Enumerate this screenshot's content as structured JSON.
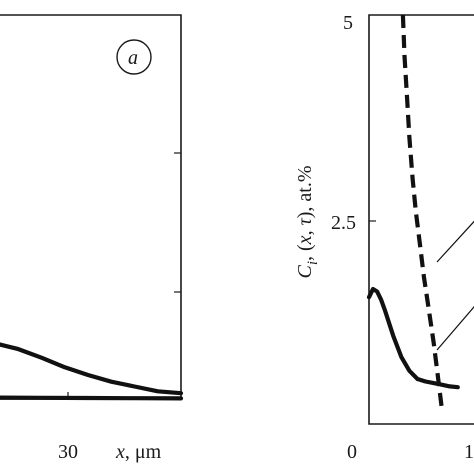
{
  "chart_data": [
    {
      "panel": "a",
      "type": "line",
      "xlabel_var": "x",
      "xlabel_unit": ", μm",
      "x_tick_labels": [
        "30"
      ],
      "x_tick_values": [
        30
      ],
      "xlim": [
        0,
        40
      ],
      "series": [
        {
          "style": "solid",
          "x": [
            0,
            5,
            10,
            15,
            20,
            25,
            30,
            35,
            40
          ],
          "y": [
            0.58,
            0.52,
            0.43,
            0.33,
            0.25,
            0.18,
            0.13,
            0.08,
            0.06
          ]
        },
        {
          "style": "solid",
          "x": [
            0,
            10,
            20,
            30,
            40
          ],
          "y": [
            0.015,
            0.012,
            0.01,
            0.008,
            0.006
          ]
        }
      ],
      "ylim": [
        0,
        4
      ]
    },
    {
      "type": "line",
      "ylabel_var": "C",
      "ylabel_sub": "i",
      "ylabel_mid": ", (",
      "ylabel_x": "x",
      "ylabel_comma": ", ",
      "ylabel_tau": "τ",
      "ylabel_end": "), at.%",
      "y_tick_labels": [
        "0",
        "2.5",
        "5"
      ],
      "y_tick_values": [
        0,
        2.5,
        5
      ],
      "ylim": [
        0,
        5
      ],
      "x_tick_labels": [
        "1"
      ],
      "x_tick_values": [
        1
      ],
      "xlim": [
        0,
        1.3
      ],
      "series": [
        {
          "style": "solid",
          "x": [
            0,
            0.05,
            0.1,
            0.15,
            0.2,
            0.3,
            0.4,
            0.5,
            0.6,
            0.7,
            0.8,
            0.9,
            1.0,
            1.1
          ],
          "y": [
            1.55,
            1.65,
            1.62,
            1.52,
            1.38,
            1.08,
            0.82,
            0.65,
            0.55,
            0.52,
            0.5,
            0.48,
            0.46,
            0.45
          ]
        },
        {
          "style": "dashed",
          "x": [
            0.42,
            0.44,
            0.47,
            0.5,
            0.54,
            0.58,
            0.63,
            0.68,
            0.74,
            0.8,
            0.85,
            0.9
          ],
          "y": [
            5.0,
            4.5,
            4.0,
            3.5,
            3.0,
            2.6,
            2.2,
            1.8,
            1.4,
            1.0,
            0.6,
            0.2
          ]
        }
      ]
    }
  ]
}
